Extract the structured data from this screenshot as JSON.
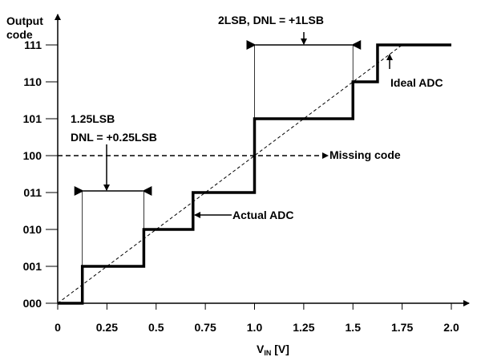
{
  "chart_data": {
    "type": "line",
    "title": "",
    "xlabel": "V",
    "xlabel_sub": "IN",
    "xlabel_unit": " [V]",
    "ylabel_line1": "Output",
    "ylabel_line2": "code",
    "xlim": [
      0,
      2.0
    ],
    "ylim": [
      0,
      7
    ],
    "x_ticks": [
      0,
      0.25,
      0.5,
      0.75,
      1.0,
      1.25,
      1.5,
      1.75,
      2.0
    ],
    "x_tick_labels": [
      "0",
      "0.25",
      "0.5",
      "0.75",
      "1.0",
      "1.25",
      "1.5",
      "1.75",
      "2.0"
    ],
    "y_tick_labels": [
      "000",
      "001",
      "010",
      "011",
      "100",
      "101",
      "110",
      "111"
    ],
    "grid": false,
    "series": [
      {
        "name": "Actual ADC",
        "style": "solid-thick-step",
        "points": [
          [
            0,
            0
          ],
          [
            0.125,
            0
          ],
          [
            0.125,
            1
          ],
          [
            0.4375,
            1
          ],
          [
            0.4375,
            2
          ],
          [
            0.6875,
            2
          ],
          [
            0.6875,
            3
          ],
          [
            1.0,
            3
          ],
          [
            1.0,
            5
          ],
          [
            1.5,
            5
          ],
          [
            1.5,
            6
          ],
          [
            1.625,
            6
          ],
          [
            1.625,
            7
          ],
          [
            2.0,
            7
          ]
        ]
      },
      {
        "name": "Ideal ADC",
        "style": "dashed-thin",
        "points": [
          [
            0,
            0
          ],
          [
            1.75,
            7
          ]
        ]
      }
    ],
    "annotations": {
      "missing_code": {
        "label": "Missing code",
        "code": 4
      },
      "actual_adc_label": "Actual ADC",
      "ideal_adc_label": "Ideal ADC",
      "width_1": {
        "line1": "1.25LSB",
        "line2": "DNL = +0.25LSB",
        "x_from": 0.125,
        "x_to": 0.4375
      },
      "width_2": {
        "line1": "2LSB, DNL = +1LSB",
        "x_from": 1.0,
        "x_to": 1.5
      }
    }
  }
}
